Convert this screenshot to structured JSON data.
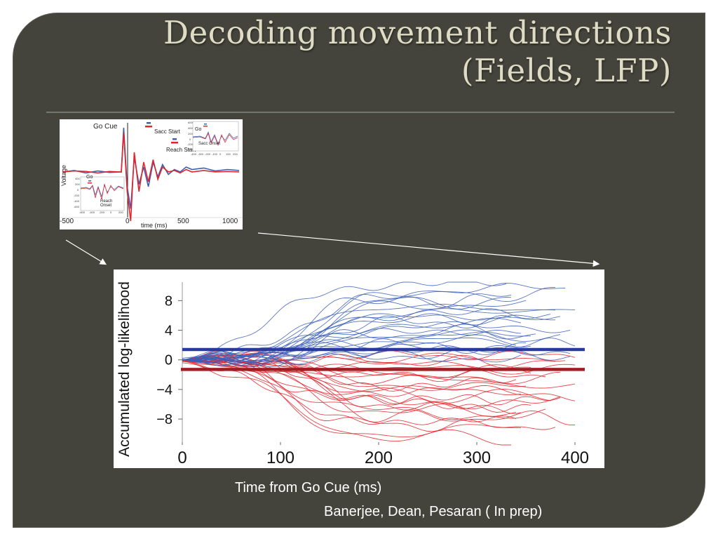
{
  "slide": {
    "title_line1": "Decoding movement directions",
    "title_line2": "(Fields, LFP)",
    "x_caption": "Time from Go Cue (ms)",
    "credit": "Banerjee, Dean, Pesaran ( In prep)"
  },
  "colors": {
    "background": "#44443c",
    "title": "#dedcc4",
    "blue": "#3b5fb8",
    "red": "#e2242b",
    "blue_threshold": "#2a3a9c",
    "red_threshold": "#a01e22"
  },
  "chart_data": [
    {
      "type": "line",
      "panel": "inset",
      "title": "",
      "xlabel": "time (ms)",
      "ylabel": "Voltage",
      "xlim": [
        -500,
        1000
      ],
      "x_ticks": [
        "-500",
        "0",
        "500",
        "1000"
      ],
      "annotations": [
        "Go Cue",
        "Sacc Start",
        "Reach Start"
      ],
      "x": [
        -500,
        -400,
        -300,
        -200,
        -100,
        0,
        20,
        50,
        80,
        110,
        150,
        190,
        230,
        270,
        310,
        350,
        400,
        450,
        500,
        550,
        600,
        700,
        800,
        900,
        1000
      ],
      "series": [
        {
          "color": "blue",
          "values": [
            0,
            0.03,
            -0.02,
            0.02,
            -0.01,
            0,
            0.9,
            -0.3,
            -0.75,
            0.3,
            -0.25,
            0.1,
            -0.3,
            0.2,
            -0.1,
            0.15,
            -0.05,
            0.05,
            0,
            0.1,
            0.05,
            0.08,
            0.02,
            0.05,
            0.03
          ]
        },
        {
          "color": "red",
          "values": [
            0,
            0.02,
            0.01,
            -0.02,
            0.01,
            0,
            0.8,
            -0.4,
            -1.0,
            0.4,
            -0.4,
            0.2,
            -0.2,
            0.25,
            -0.15,
            0.1,
            0,
            0.03,
            -0.02,
            0.05,
            0,
            0.03,
            0,
            0.01,
            0
          ]
        }
      ],
      "insets": [
        {
          "label": "Go",
          "annotation": "Sacc Onset",
          "x_ticks": [
            "-400",
            "-300",
            "-200",
            "-100",
            "0",
            "100",
            "200"
          ],
          "y_ticks": [
            "600",
            "400",
            "200",
            "0",
            "-200",
            "-400"
          ]
        },
        {
          "label": "Go",
          "annotation": "Reach Onset",
          "x_ticks": [
            "-600",
            "-400",
            "-200",
            "0",
            "200"
          ],
          "y_ticks": [
            "400",
            "200",
            "0",
            "-200",
            "-400",
            "-600"
          ]
        }
      ]
    },
    {
      "type": "line",
      "panel": "main",
      "title": "",
      "xlabel": "Time from Go Cue (ms)",
      "ylabel": "Accumulated log-likelihood",
      "xlim": [
        0,
        410
      ],
      "ylim": [
        -11.5,
        10.5
      ],
      "x_ticks": [
        0,
        100,
        200,
        300,
        400
      ],
      "y_ticks": [
        8,
        4,
        0,
        -4,
        -8
      ],
      "y_tick_labels": [
        "8",
        "4",
        "0",
        "−4",
        "−8"
      ],
      "thresholds": [
        {
          "color": "blue",
          "y": 1.4
        },
        {
          "color": "red",
          "y": -1.3
        }
      ],
      "blue_trial_endpoints": [
        10.2,
        9.5,
        8.8,
        8.3,
        7.9,
        7.5,
        7.0,
        6.6,
        6.2,
        5.9,
        5.5,
        5.1,
        4.8,
        4.4,
        4.0,
        3.7,
        3.3,
        3.0,
        2.6,
        2.3,
        1.9,
        1.5,
        1.2,
        0.8,
        0.5
      ],
      "red_trial_endpoints": [
        0.6,
        0.2,
        -0.3,
        -0.8,
        -1.2,
        -1.7,
        -2.1,
        -2.5,
        -2.9,
        -3.3,
        -3.7,
        -4.1,
        -4.5,
        -4.9,
        -5.3,
        -5.7,
        -6.1,
        -6.5,
        -6.9,
        -7.3,
        -7.8,
        -8.3,
        -8.9,
        -9.6,
        -10.5
      ]
    }
  ]
}
